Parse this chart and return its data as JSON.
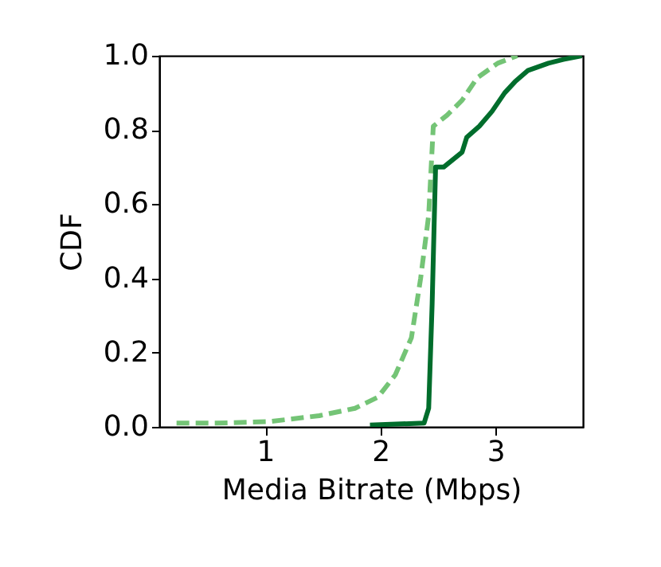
{
  "chart_data": {
    "type": "line",
    "xlabel": "Media Bitrate (Mbps)",
    "ylabel": "CDF",
    "xlim": [
      0.08,
      3.76
    ],
    "ylim": [
      0,
      1
    ],
    "xticks": [
      1,
      2,
      3
    ],
    "yticks": [
      {
        "value": 0,
        "label": "0.0"
      },
      {
        "value": 0.2,
        "label": "0.2"
      },
      {
        "value": 0.4,
        "label": "0.4"
      },
      {
        "value": 0.6,
        "label": "0.6"
      },
      {
        "value": 0.8,
        "label": "0.8"
      },
      {
        "value": 1,
        "label": "1.0"
      }
    ],
    "grid": false,
    "legend": false,
    "marker": "none",
    "series": [
      {
        "color": "#74c476",
        "line_style": "dashed",
        "x": [
          0.23,
          0.58,
          1.03,
          1.47,
          1.78,
          1.98,
          2.13,
          2.27,
          2.35,
          2.42,
          2.46,
          2.58,
          2.71,
          2.84,
          3.02,
          3.19
        ],
        "values": [
          0.01,
          0.01,
          0.014,
          0.03,
          0.05,
          0.08,
          0.14,
          0.24,
          0.4,
          0.57,
          0.81,
          0.84,
          0.88,
          0.94,
          0.98,
          1.0
        ]
      },
      {
        "color": "#006d2c",
        "line_style": "solid",
        "x": [
          1.91,
          2.38,
          2.42,
          2.45,
          2.48,
          2.55,
          2.71,
          2.75,
          2.86,
          2.97,
          3.08,
          3.17,
          3.28,
          3.46,
          3.59,
          3.75
        ],
        "values": [
          0.005,
          0.01,
          0.05,
          0.33,
          0.7,
          0.7,
          0.74,
          0.78,
          0.81,
          0.85,
          0.9,
          0.93,
          0.96,
          0.98,
          0.99,
          1.0
        ]
      }
    ]
  }
}
